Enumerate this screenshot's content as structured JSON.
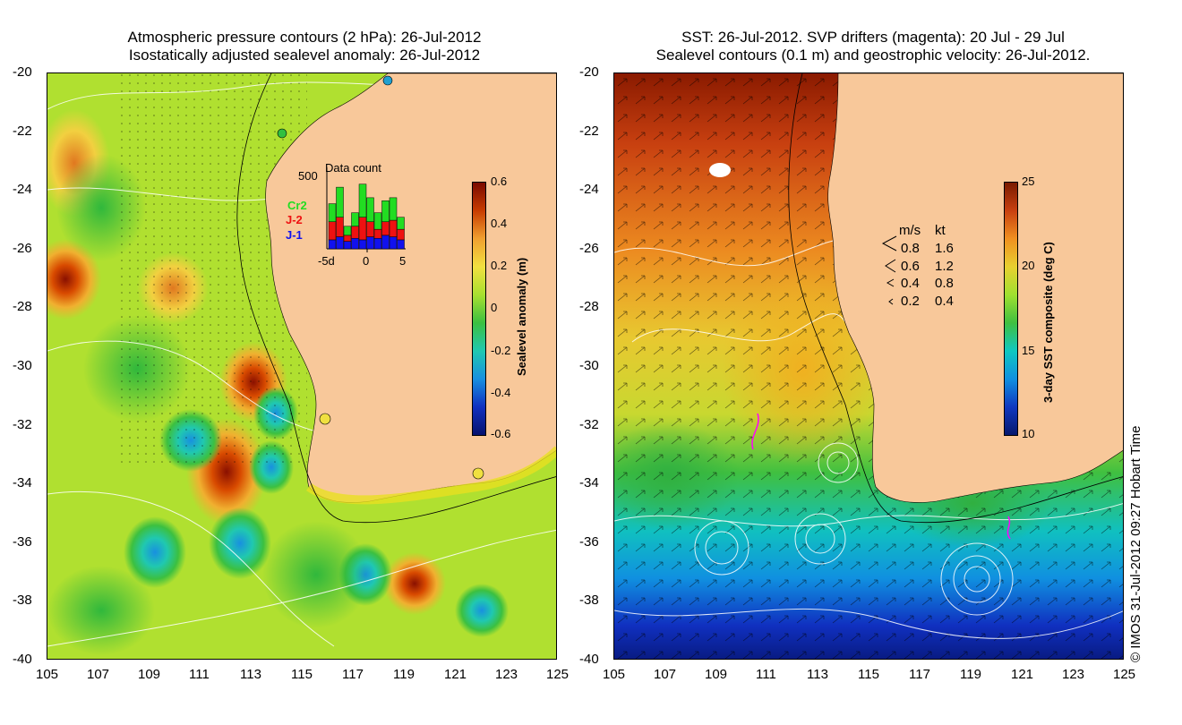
{
  "left_map": {
    "title_line1": "Atmospheric pressure contours (2 hPa): 26-Jul-2012",
    "title_line2": "Isostatically adjusted sealevel anomaly: 26-Jul-2012",
    "x_ticks": [
      "105",
      "107",
      "109",
      "111",
      "113",
      "115",
      "117",
      "119",
      "121",
      "123",
      "125"
    ],
    "y_ticks": [
      "-20",
      "-22",
      "-24",
      "-26",
      "-28",
      "-30",
      "-32",
      "-34",
      "-36",
      "-38",
      "-40"
    ],
    "colorbar": {
      "label": "Sealevel anomaly (m)",
      "ticks": [
        "0.6",
        "0.4",
        "0.2",
        "0",
        "-0.2",
        "-0.4",
        "-0.6"
      ],
      "colors": [
        "#7a0a00",
        "#c83c00",
        "#f0a030",
        "#f2e040",
        "#a8e030",
        "#3cc040",
        "#20c8b0",
        "#1890e0",
        "#1030c0",
        "#06126e"
      ]
    },
    "inset": {
      "title": "Data count",
      "ymax": "500",
      "legend": [
        {
          "name": "Cr2",
          "color": "#22dd22"
        },
        {
          "name": "J-2",
          "color": "#ee1111"
        },
        {
          "name": "J-1",
          "color": "#1111ee"
        }
      ],
      "x_ticks": [
        "-5d",
        "0",
        "5"
      ],
      "bars": [
        {
          "j1": 60,
          "j2": 120,
          "cr2": 120
        },
        {
          "j1": 80,
          "j2": 130,
          "cr2": 200
        },
        {
          "j1": 50,
          "j2": 40,
          "cr2": 60
        },
        {
          "j1": 70,
          "j2": 80,
          "cr2": 90
        },
        {
          "j1": 60,
          "j2": 150,
          "cr2": 220
        },
        {
          "j1": 80,
          "j2": 100,
          "cr2": 160
        },
        {
          "j1": 70,
          "j2": 60,
          "cr2": 110
        },
        {
          "j1": 90,
          "j2": 90,
          "cr2": 140
        },
        {
          "j1": 80,
          "j2": 110,
          "cr2": 150
        },
        {
          "j1": 60,
          "j2": 70,
          "cr2": 80
        }
      ]
    }
  },
  "right_map": {
    "title_line1": "SST: 26-Jul-2012. SVP drifters (magenta): 20 Jul - 29 Jul",
    "title_line2": "Sealevel contours (0.1 m) and geostrophic velocity: 26-Jul-2012.",
    "x_ticks": [
      "105",
      "107",
      "109",
      "111",
      "113",
      "115",
      "117",
      "119",
      "121",
      "123",
      "125"
    ],
    "y_ticks": [
      "-20",
      "-22",
      "-24",
      "-26",
      "-28",
      "-30",
      "-32",
      "-34",
      "-36",
      "-38",
      "-40"
    ],
    "colorbar": {
      "label": "3-day SST composite (deg C)",
      "ticks": [
        "25",
        "20",
        "15",
        "10"
      ],
      "colors": [
        "#7a1a00",
        "#c84010",
        "#f09020",
        "#e8d030",
        "#a0e030",
        "#40c040",
        "#10c8c0",
        "#1090e0",
        "#1038c0",
        "#06186e"
      ]
    },
    "speed_legend": {
      "header_ms": "m/s",
      "header_kt": "kt",
      "rows": [
        {
          "ms": "0.8",
          "kt": "1.6"
        },
        {
          "ms": "0.6",
          "kt": "1.2"
        },
        {
          "ms": "0.4",
          "kt": "0.8"
        },
        {
          "ms": "0.2",
          "kt": "0.4"
        }
      ]
    },
    "credit": "© IMOS 31-Jul-2012 09:27 Hobart Time"
  },
  "colors": {
    "land": "#f8c89a",
    "ocean_left": "#b0e030",
    "coast_line": "#000000"
  }
}
